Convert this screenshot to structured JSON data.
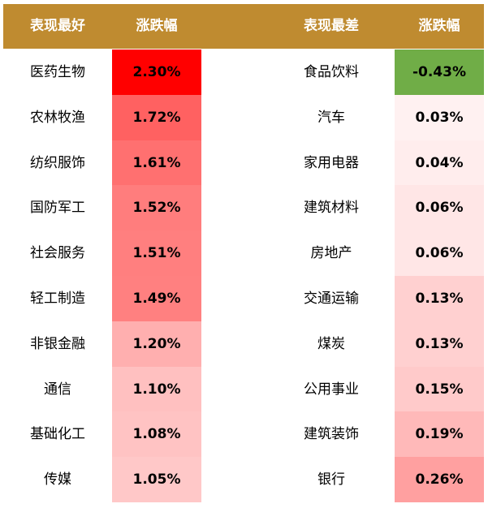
{
  "header": {
    "best": "表现最好",
    "change1": "涨跌幅",
    "worst": "表现最差",
    "change2": "涨跌幅"
  },
  "colors": {
    "header": "#BF8B30"
  },
  "rows": [
    {
      "best": "医药生物",
      "best_val": "2.30%",
      "best_color": "#FF0000",
      "worst": "食品饮料",
      "worst_val": "-0.43%",
      "worst_color": "#70AD47"
    },
    {
      "best": "农林牧渔",
      "best_val": "1.72%",
      "best_color": "#FF6161",
      "worst": "汽车",
      "worst_val": "0.03%",
      "worst_color": "#FFF1F1"
    },
    {
      "best": "纺织服饰",
      "best_val": "1.61%",
      "best_color": "#FF7070",
      "worst": "家用电器",
      "worst_val": "0.04%",
      "worst_color": "#FFEDED"
    },
    {
      "best": "国防军工",
      "best_val": "1.52%",
      "best_color": "#FF7D7D",
      "worst": "建筑材料",
      "worst_val": "0.06%",
      "worst_color": "#FFE6E6"
    },
    {
      "best": "社会服务",
      "best_val": "1.51%",
      "best_color": "#FF7F7F",
      "worst": "房地产",
      "worst_val": "0.06%",
      "worst_color": "#FFE6E6"
    },
    {
      "best": "轻工制造",
      "best_val": "1.49%",
      "best_color": "#FF8080",
      "worst": "交通运输",
      "worst_val": "0.13%",
      "worst_color": "#FFD0D0"
    },
    {
      "best": "非银金融",
      "best_val": "1.20%",
      "best_color": "#FFAFAF",
      "worst": "煤炭",
      "worst_val": "0.13%",
      "worst_color": "#FFD0D0"
    },
    {
      "best": "通信",
      "best_val": "1.10%",
      "best_color": "#FFC0C0",
      "worst": "公用事业",
      "worst_val": "0.15%",
      "worst_color": "#FFCACA"
    },
    {
      "best": "基础化工",
      "best_val": "1.08%",
      "best_color": "#FFC3C3",
      "worst": "建筑装饰",
      "worst_val": "0.19%",
      "worst_color": "#FFB9B9"
    },
    {
      "best": "传媒",
      "best_val": "1.05%",
      "best_color": "#FFC8C8",
      "worst": "银行",
      "worst_val": "0.26%",
      "worst_color": "#FFA0A0"
    }
  ]
}
